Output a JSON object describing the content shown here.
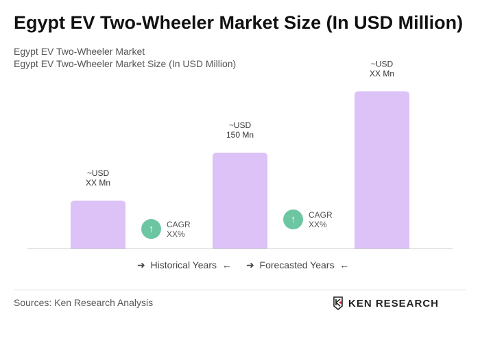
{
  "title": "Egypt EV Two-Wheeler Market Size (In USD Million)",
  "subtitle1": "Egypt EV Two-Wheeler Market",
  "subtitle2": "Egypt EV Two-Wheeler Market Size (In USD Million)",
  "chart_data": {
    "type": "bar",
    "categories": [
      "",
      "",
      ""
    ],
    "values": [
      75,
      150,
      246
    ],
    "data_labels": [
      [
        "~USD",
        "XX Mn"
      ],
      [
        "~USD",
        "150 Mn"
      ],
      [
        "~USD",
        "XX Mn"
      ]
    ],
    "bar_color": "#dcc2f7",
    "grid": false
  },
  "cagr": [
    {
      "label": "CAGR",
      "value": "XX%"
    },
    {
      "label": "CAGR",
      "value": "XX%"
    }
  ],
  "cagr_color": "#6cc6a2",
  "legend": {
    "historical": "Historical Years",
    "forecasted": "Forecasted Years"
  },
  "sources": "Sources: Ken Research Analysis",
  "logo": "KEN RESEARCH"
}
